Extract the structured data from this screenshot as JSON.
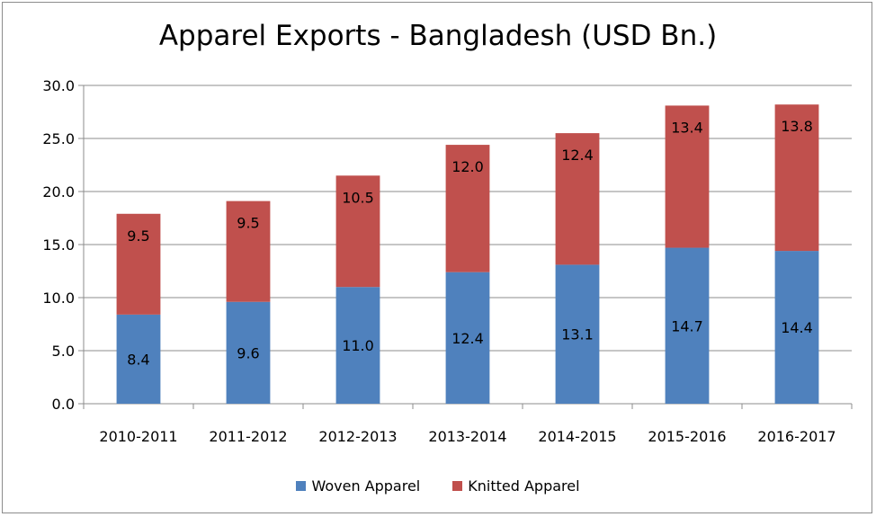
{
  "chart_data": {
    "type": "bar",
    "stacked": true,
    "title": "Apparel Exports - Bangladesh (USD Bn.)",
    "xlabel": "",
    "ylabel": "",
    "ylim": [
      0,
      30
    ],
    "yticks": [
      "0.0",
      "5.0",
      "10.0",
      "15.0",
      "20.0",
      "25.0",
      "30.0"
    ],
    "grid": true,
    "legend_position": "bottom",
    "categories": [
      "2010-2011",
      "2011-2012",
      "2012-2013",
      "2013-2014",
      "2014-2015",
      "2015-2016",
      "2016-2017"
    ],
    "series": [
      {
        "name": "Woven Apparel",
        "color": "#4f81bd",
        "values": [
          8.4,
          9.6,
          11.0,
          12.4,
          13.1,
          14.7,
          14.4
        ],
        "labels": [
          "8.4",
          "9.6",
          "11.0",
          "12.4",
          "13.1",
          "14.7",
          "14.4"
        ]
      },
      {
        "name": "Knitted Apparel",
        "color": "#c0504d",
        "values": [
          9.5,
          9.5,
          10.5,
          12.0,
          12.4,
          13.4,
          13.8
        ],
        "labels": [
          "9.5",
          "9.5",
          "10.5",
          "12.0",
          "12.4",
          "13.4",
          "13.8"
        ]
      }
    ]
  }
}
